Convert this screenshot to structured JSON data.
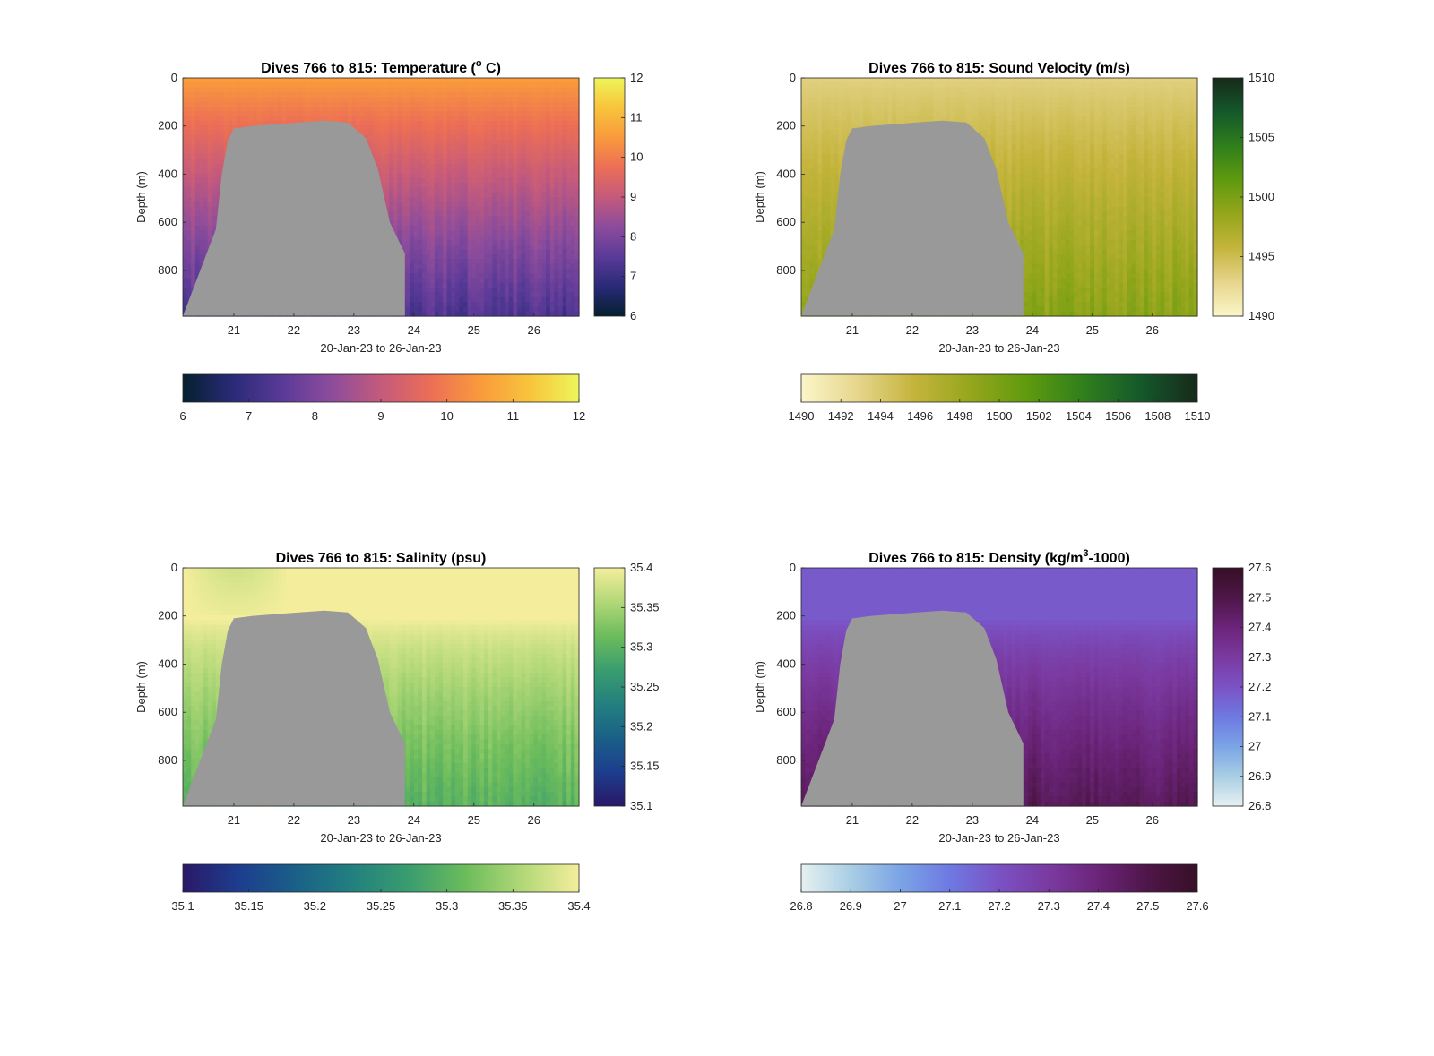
{
  "figure": {
    "background": "#ffffff",
    "mask_color": "#999999"
  },
  "chart_data": [
    {
      "type": "heatmap",
      "title": "Dives 766 to 815: Temperature (",
      "title_superscript": "o",
      "title_tail": " C)",
      "xlabel": "20-Jan-23 to 26-Jan-23",
      "ylabel": "Depth (m)",
      "xlim": [
        20.15,
        26.75
      ],
      "ylim": [
        0,
        990
      ],
      "y_reversed": true,
      "xticks": [
        21,
        22,
        23,
        24,
        25,
        26
      ],
      "yticks": [
        0,
        200,
        400,
        600,
        800
      ],
      "colormap": "thermal",
      "colormap_stops": [
        "#04202e",
        "#2a2a78",
        "#5a3a98",
        "#8c4c9c",
        "#c45a7c",
        "#ec6e56",
        "#f99a3c",
        "#f8c43c",
        "#eef55a"
      ],
      "clim": [
        6,
        12
      ],
      "right_colorbar_ticks": [
        6,
        7,
        8,
        9,
        10,
        11,
        12
      ],
      "bottom_colorbar_ticks": [
        6,
        7,
        8,
        9,
        10,
        11,
        12
      ],
      "surface_value": 10.6,
      "deep_value": 7.3,
      "profile_curve": "gradual",
      "mask_profile": [
        [
          20.15,
          990
        ],
        [
          20.7,
          630
        ],
        [
          20.8,
          400
        ],
        [
          20.9,
          260
        ],
        [
          21.0,
          210
        ],
        [
          21.3,
          200
        ],
        [
          21.8,
          190
        ],
        [
          22.5,
          178
        ],
        [
          22.9,
          185
        ],
        [
          23.2,
          250
        ],
        [
          23.4,
          380
        ],
        [
          23.6,
          600
        ],
        [
          23.85,
          730
        ],
        [
          23.85,
          990
        ]
      ]
    },
    {
      "type": "heatmap",
      "title": "Dives 766 to 815: Sound Velocity (m/s)",
      "xlabel": "20-Jan-23 to 26-Jan-23",
      "ylabel": "Depth (m)",
      "xlim": [
        20.15,
        26.75
      ],
      "ylim": [
        0,
        990
      ],
      "y_reversed": true,
      "xticks": [
        21,
        22,
        23,
        24,
        25,
        26
      ],
      "yticks": [
        0,
        200,
        400,
        600,
        800
      ],
      "colormap": "speed",
      "colormap_stops": [
        "#fbf6c9",
        "#e6d58c",
        "#c4b43c",
        "#95a61c",
        "#5f9a0f",
        "#2f7f1c",
        "#15582b",
        "#162a1a"
      ],
      "clim": [
        1490,
        1510
      ],
      "right_colorbar_ticks": [
        1490,
        1495,
        1500,
        1505,
        1510
      ],
      "bottom_colorbar_ticks": [
        1490,
        1492,
        1494,
        1496,
        1498,
        1500,
        1502,
        1504,
        1506,
        1508,
        1510
      ],
      "surface_value": 1493.2,
      "deep_value": 1499.2,
      "profile_curve": "gradual",
      "mask_profile": [
        [
          20.15,
          990
        ],
        [
          20.7,
          630
        ],
        [
          20.8,
          400
        ],
        [
          20.9,
          260
        ],
        [
          21.0,
          210
        ],
        [
          21.3,
          200
        ],
        [
          21.8,
          190
        ],
        [
          22.5,
          178
        ],
        [
          22.9,
          185
        ],
        [
          23.2,
          250
        ],
        [
          23.4,
          380
        ],
        [
          23.6,
          600
        ],
        [
          23.85,
          730
        ],
        [
          23.85,
          990
        ]
      ]
    },
    {
      "type": "heatmap",
      "title": "Dives 766 to 815: Salinity (psu)",
      "xlabel": "20-Jan-23 to 26-Jan-23",
      "ylabel": "Depth (m)",
      "xlim": [
        20.15,
        26.75
      ],
      "ylim": [
        0,
        990
      ],
      "y_reversed": true,
      "xticks": [
        21,
        22,
        23,
        24,
        25,
        26
      ],
      "yticks": [
        0,
        200,
        400,
        600,
        800
      ],
      "colormap": "haline",
      "colormap_stops": [
        "#2a1868",
        "#1d3e8e",
        "#1a6088",
        "#22807e",
        "#3a9d6e",
        "#6cbc5c",
        "#b2d878",
        "#f4ee9c"
      ],
      "clim": [
        35.1,
        35.4
      ],
      "right_colorbar_ticks": [
        35.1,
        35.15,
        35.2,
        35.25,
        35.3,
        35.35,
        35.4
      ],
      "bottom_colorbar_ticks": [
        35.1,
        35.15,
        35.2,
        35.25,
        35.3,
        35.35,
        35.4
      ],
      "surface_value": 35.4,
      "deep_value": 35.3,
      "profile_curve": "late",
      "mask_profile": [
        [
          20.15,
          990
        ],
        [
          20.7,
          630
        ],
        [
          20.8,
          400
        ],
        [
          20.9,
          260
        ],
        [
          21.0,
          210
        ],
        [
          21.3,
          200
        ],
        [
          21.8,
          190
        ],
        [
          22.5,
          178
        ],
        [
          22.9,
          185
        ],
        [
          23.2,
          250
        ],
        [
          23.4,
          380
        ],
        [
          23.6,
          600
        ],
        [
          23.85,
          730
        ],
        [
          23.85,
          990
        ]
      ]
    },
    {
      "type": "heatmap",
      "title": "Dives 766 to 815: Density (kg/m",
      "title_superscript": "3",
      "title_tail": "-1000)",
      "xlabel": "20-Jan-23 to 26-Jan-23",
      "ylabel": "Depth (m)",
      "xlim": [
        20.15,
        26.75
      ],
      "ylim": [
        0,
        990
      ],
      "y_reversed": true,
      "xticks": [
        21,
        22,
        23,
        24,
        25,
        26
      ],
      "yticks": [
        0,
        200,
        400,
        600,
        800
      ],
      "colormap": "dense",
      "colormap_stops": [
        "#e6f1f1",
        "#a9cee4",
        "#7ba4e6",
        "#6e79e2",
        "#7b52c4",
        "#7a3aa0",
        "#6b2479",
        "#4e1648",
        "#360f26"
      ],
      "clim": [
        26.8,
        27.6
      ],
      "right_colorbar_ticks": [
        26.8,
        26.9,
        27,
        27.1,
        27.2,
        27.3,
        27.4,
        27.5,
        27.6
      ],
      "bottom_colorbar_ticks": [
        26.8,
        26.9,
        27,
        27.1,
        27.2,
        27.3,
        27.4,
        27.5,
        27.6
      ],
      "surface_value": 27.18,
      "deep_value": 27.47,
      "profile_curve": "late",
      "mask_profile": [
        [
          20.15,
          990
        ],
        [
          20.7,
          630
        ],
        [
          20.8,
          400
        ],
        [
          20.9,
          260
        ],
        [
          21.0,
          210
        ],
        [
          21.3,
          200
        ],
        [
          21.8,
          190
        ],
        [
          22.5,
          178
        ],
        [
          22.9,
          185
        ],
        [
          23.2,
          250
        ],
        [
          23.4,
          380
        ],
        [
          23.6,
          600
        ],
        [
          23.85,
          730
        ],
        [
          23.85,
          990
        ]
      ]
    }
  ]
}
